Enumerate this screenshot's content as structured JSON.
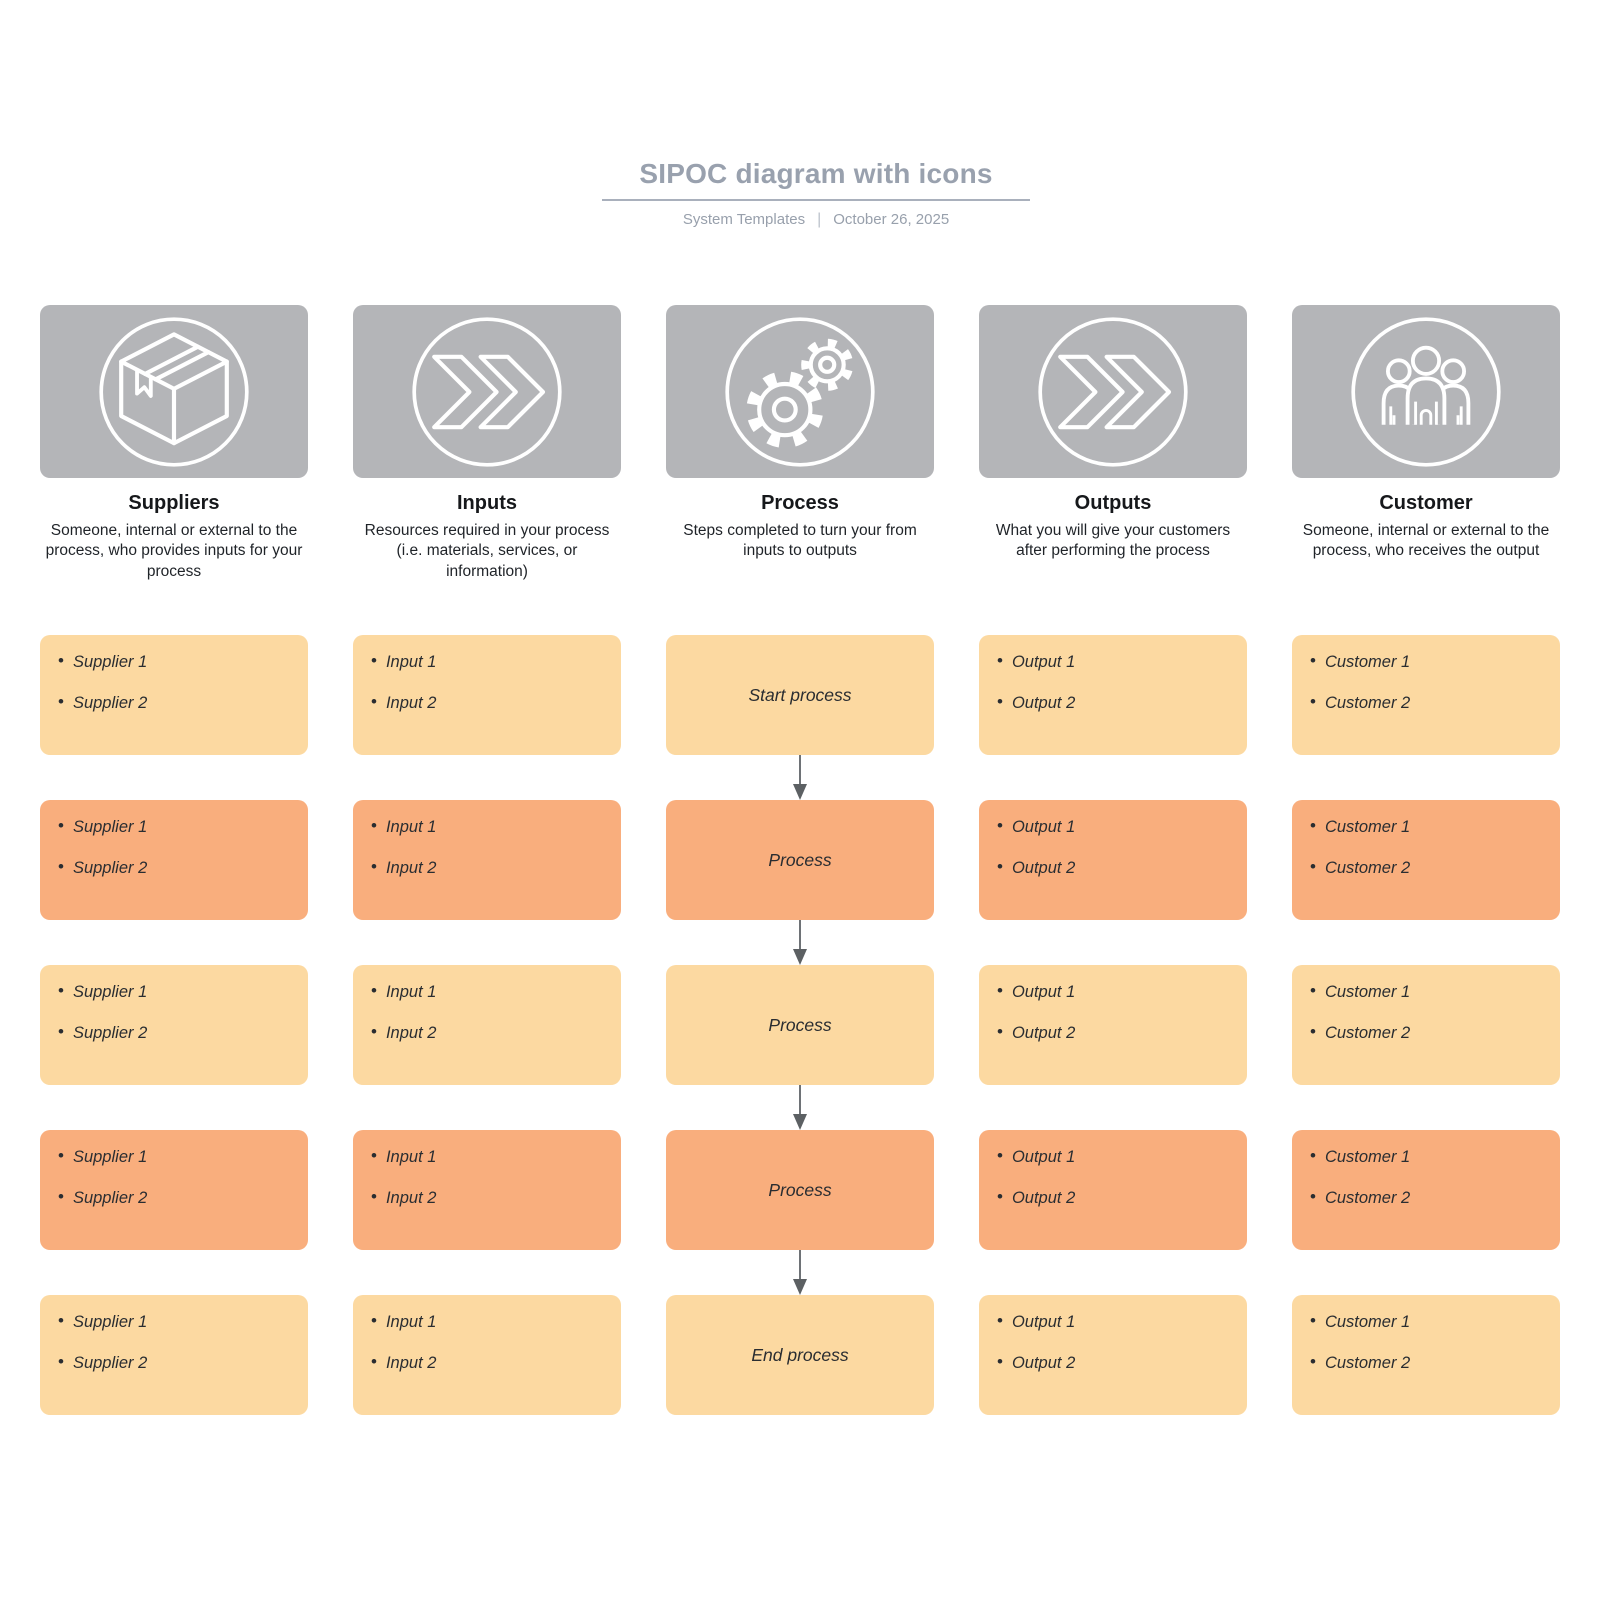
{
  "header": {
    "title": "SIPOC diagram with icons",
    "byline": "System Templates",
    "separator": "|",
    "date": "October 26, 2025"
  },
  "colors": {
    "tile_gray": "#B4B5B8",
    "card_light": "#FCD9A1",
    "card_dark": "#F9AE7D",
    "title_gray": "#99A1AE",
    "rule_gray": "#A9B0BC",
    "arrow_line": "#6E7276",
    "arrow_head": "#5C6063",
    "card_text": "#2A2D31",
    "icon_stroke": "#FFFFFF"
  },
  "columns": [
    {
      "key": "suppliers",
      "icon": "package-icon",
      "title": "Suppliers",
      "description": "Someone, internal or external to the process, who provides inputs for your process",
      "card_type": "list",
      "cards": [
        {
          "tone": "light",
          "items": [
            "Supplier 1",
            "Supplier 2"
          ]
        },
        {
          "tone": "dark",
          "items": [
            "Supplier 1",
            "Supplier 2"
          ]
        },
        {
          "tone": "light",
          "items": [
            "Supplier 1",
            "Supplier 2"
          ]
        },
        {
          "tone": "dark",
          "items": [
            "Supplier 1",
            "Supplier 2"
          ]
        },
        {
          "tone": "light",
          "items": [
            "Supplier 1",
            "Supplier 2"
          ]
        }
      ]
    },
    {
      "key": "inputs",
      "icon": "double-chevron-icon",
      "title": "Inputs",
      "description": "Resources required in your process (i.e. materials, services, or information)",
      "card_type": "list",
      "cards": [
        {
          "tone": "light",
          "items": [
            "Input 1",
            "Input 2"
          ]
        },
        {
          "tone": "dark",
          "items": [
            "Input 1",
            "Input 2"
          ]
        },
        {
          "tone": "light",
          "items": [
            "Input 1",
            "Input 2"
          ]
        },
        {
          "tone": "dark",
          "items": [
            "Input 1",
            "Input 2"
          ]
        },
        {
          "tone": "light",
          "items": [
            "Input 1",
            "Input 2"
          ]
        }
      ]
    },
    {
      "key": "process",
      "icon": "gears-icon",
      "title": "Process",
      "description": "Steps completed to turn your from inputs to outputs",
      "card_type": "step",
      "arrows_between": true,
      "cards": [
        {
          "tone": "light",
          "label": "Start process"
        },
        {
          "tone": "dark",
          "label": "Process"
        },
        {
          "tone": "light",
          "label": "Process"
        },
        {
          "tone": "dark",
          "label": "Process"
        },
        {
          "tone": "light",
          "label": "End process"
        }
      ]
    },
    {
      "key": "outputs",
      "icon": "double-chevron-icon",
      "title": "Outputs",
      "description": "What you will give your customers after performing the process",
      "card_type": "list",
      "cards": [
        {
          "tone": "light",
          "items": [
            "Output 1",
            "Output 2"
          ]
        },
        {
          "tone": "dark",
          "items": [
            "Output 1",
            "Output 2"
          ]
        },
        {
          "tone": "light",
          "items": [
            "Output 1",
            "Output 2"
          ]
        },
        {
          "tone": "dark",
          "items": [
            "Output 1",
            "Output 2"
          ]
        },
        {
          "tone": "light",
          "items": [
            "Output 1",
            "Output 2"
          ]
        }
      ]
    },
    {
      "key": "customer",
      "icon": "people-icon",
      "title": "Customer",
      "description": "Someone, internal or external to the process, who receives the output",
      "card_type": "list",
      "cards": [
        {
          "tone": "light",
          "items": [
            "Customer 1",
            "Customer 2"
          ]
        },
        {
          "tone": "dark",
          "items": [
            "Customer 1",
            "Customer 2"
          ]
        },
        {
          "tone": "light",
          "items": [
            "Customer 1",
            "Customer 2"
          ]
        },
        {
          "tone": "dark",
          "items": [
            "Customer 1",
            "Customer 2"
          ]
        },
        {
          "tone": "light",
          "items": [
            "Customer 1",
            "Customer 2"
          ]
        }
      ]
    }
  ]
}
